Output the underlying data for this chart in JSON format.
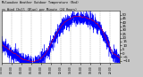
{
  "bg_color": "#c8c8c8",
  "plot_bg_color": "#ffffff",
  "red_color": "#ff0000",
  "blue_color": "#0000ff",
  "grid_color": "#808080",
  "ylim": [
    -13,
    55
  ],
  "ytick_values": [
    50,
    45,
    40,
    35,
    30,
    25,
    20,
    15,
    10,
    5,
    0,
    -5,
    -10
  ],
  "n_points": 1440,
  "seed": 42,
  "temp_profile": [
    12,
    10,
    8,
    6,
    4,
    2,
    0,
    -1,
    -3,
    -5,
    -7,
    -8,
    -9,
    -10,
    -10,
    -11,
    -11,
    -10,
    -9,
    -8,
    -6,
    -3,
    0,
    4,
    9,
    14,
    19,
    24,
    28,
    32,
    36,
    39,
    41,
    43,
    44,
    46,
    47,
    47,
    48,
    48,
    47,
    47,
    46,
    45,
    44,
    43,
    41,
    39,
    37,
    34,
    30,
    25,
    19,
    13,
    7,
    2,
    -1,
    -3,
    -5,
    -7
  ],
  "wc_noise_std": 5,
  "temp_noise_std": 1.2,
  "title_text": "Milwaukee Weather Outdoor Temperature (Red)",
  "subtitle_text": "vs Wind Chill (Blue) per Minute (24 Hours)"
}
